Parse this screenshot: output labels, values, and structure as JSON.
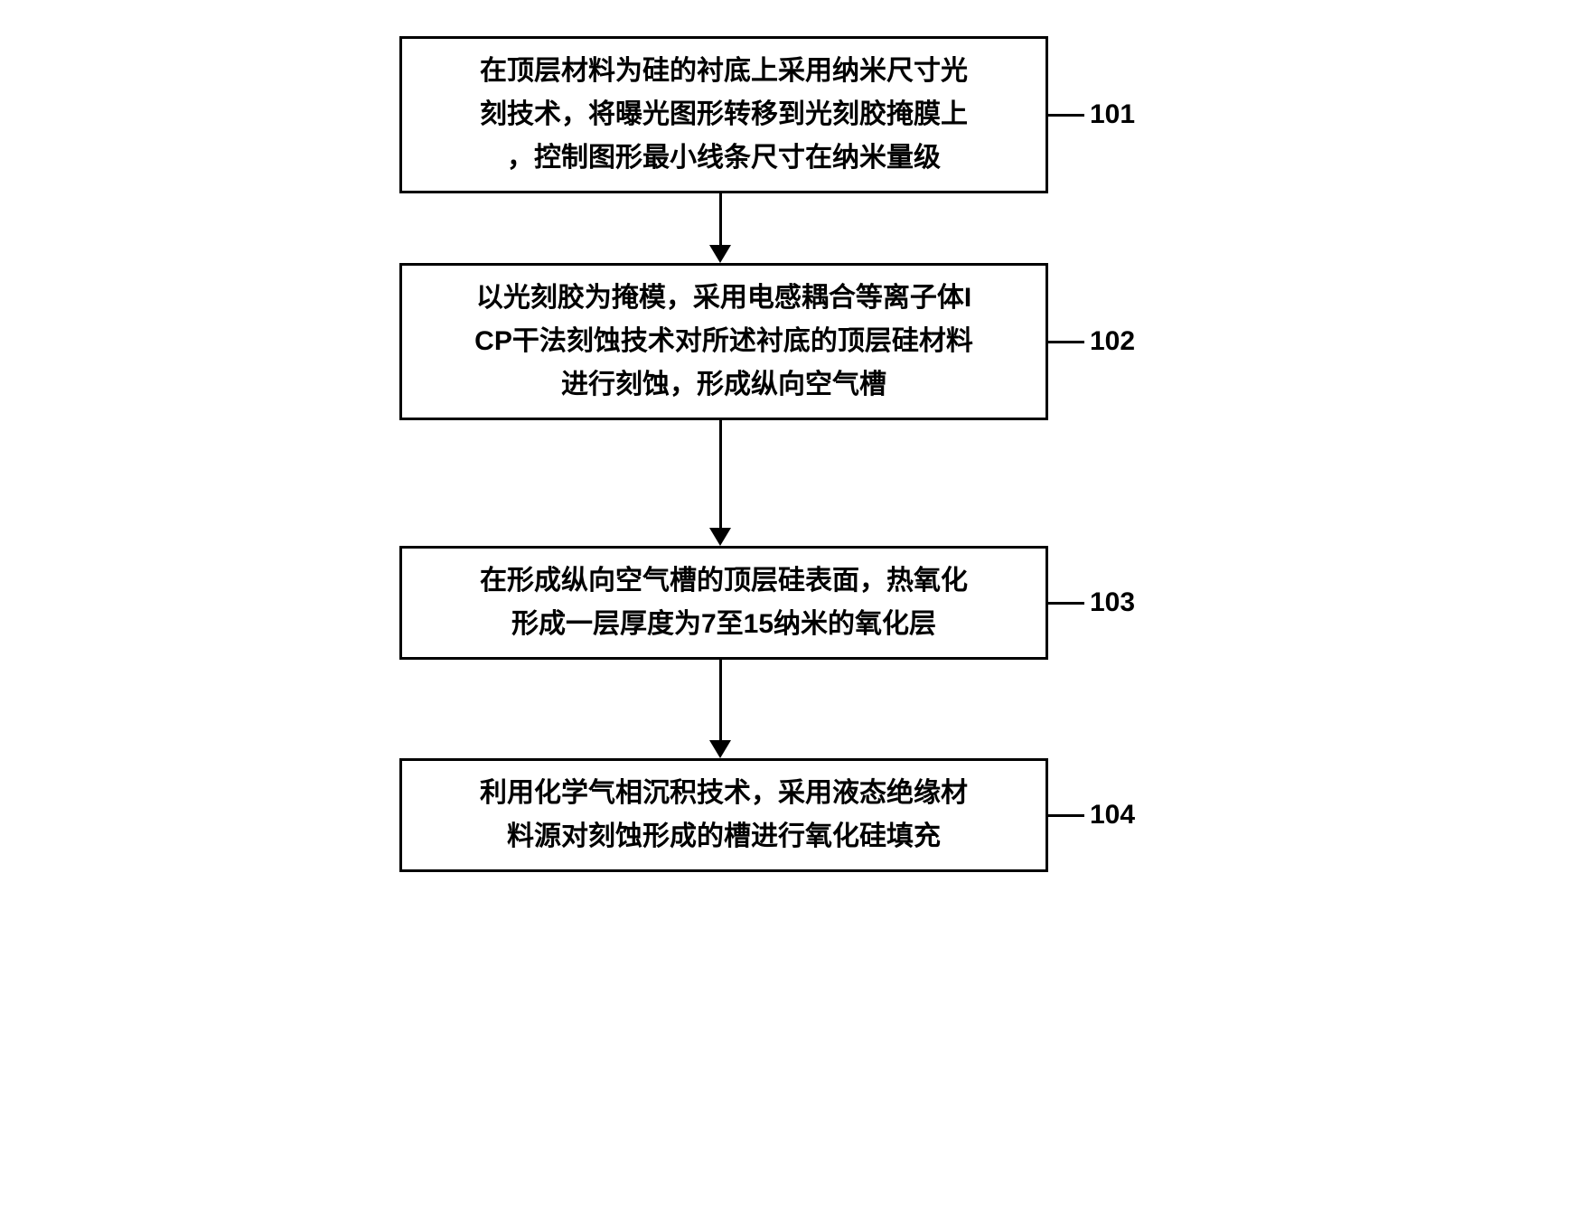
{
  "flow": {
    "type": "flowchart",
    "direction": "vertical",
    "background_color": "#ffffff",
    "node_border_color": "#000000",
    "node_border_width": 3,
    "text_color": "#000000",
    "arrow_color": "#000000",
    "arrow_thickness": 3,
    "box_font_size": 30,
    "label_font_size": 30,
    "nodes": [
      {
        "id": "101",
        "label": "101",
        "lines": [
          "在顶层材料为硅的衬底上采用纳米尺寸光",
          "刻技术，将曝光图形转移到光刻胶掩膜上",
          "，控制图形最小线条尺寸在纳米量级"
        ],
        "arrow_shaft_height": 58
      },
      {
        "id": "102",
        "label": "102",
        "lines": [
          "以光刻胶为掩模，采用电感耦合等离子体I",
          "CP干法刻蚀技术对所述衬底的顶层硅材料",
          "进行刻蚀，形成纵向空气槽"
        ],
        "arrow_shaft_height": 120
      },
      {
        "id": "103",
        "label": "103",
        "lines": [
          "在形成纵向空气槽的顶层硅表面，热氧化",
          "形成一层厚度为7至15纳米的氧化层"
        ],
        "arrow_shaft_height": 90
      },
      {
        "id": "104",
        "label": "104",
        "lines": [
          "利用化学气相沉积技术，采用液态绝缘材",
          "料源对刻蚀形成的槽进行氧化硅填充"
        ],
        "arrow_shaft_height": 0
      }
    ],
    "edges": [
      {
        "from": "101",
        "to": "102"
      },
      {
        "from": "102",
        "to": "103"
      },
      {
        "from": "103",
        "to": "104"
      }
    ]
  }
}
